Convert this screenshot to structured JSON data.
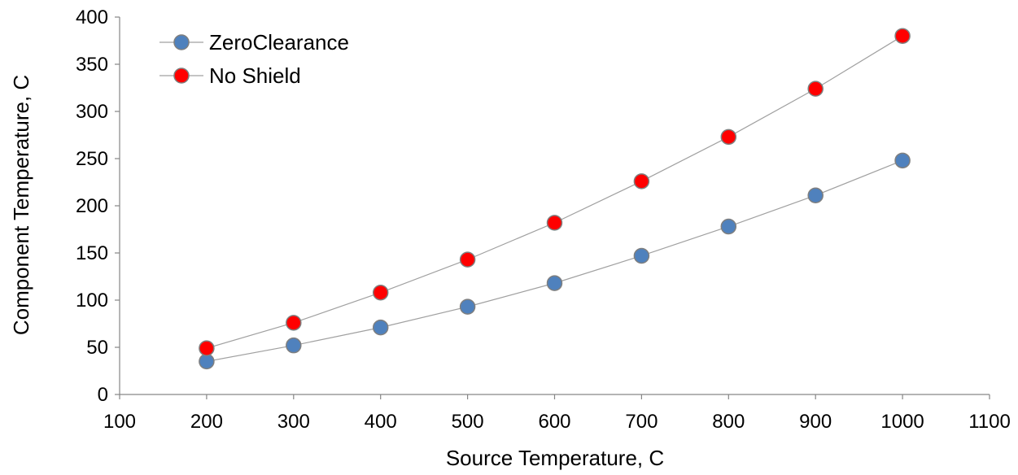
{
  "chart_data": {
    "type": "scatter",
    "title": "",
    "xlabel": "Source Temperature, C",
    "ylabel": "Component Temperature, C",
    "xlim": [
      100,
      1100
    ],
    "ylim": [
      0,
      400
    ],
    "x_ticks": [
      100,
      200,
      300,
      400,
      500,
      600,
      700,
      800,
      900,
      1000,
      1100
    ],
    "y_ticks": [
      0,
      50,
      100,
      150,
      200,
      250,
      300,
      350,
      400
    ],
    "grid": false,
    "legend_position": "top-left",
    "line_color": "#a0a0a0",
    "marker_border": "#7f7f7f",
    "series": [
      {
        "name": "ZeroClearance",
        "color": "#4f81bd",
        "x": [
          200,
          300,
          400,
          500,
          600,
          700,
          800,
          900,
          1000
        ],
        "y": [
          35,
          52,
          71,
          93,
          118,
          147,
          178,
          211,
          248
        ]
      },
      {
        "name": "No Shield",
        "color": "#ff0000",
        "x": [
          200,
          300,
          400,
          500,
          600,
          700,
          800,
          900,
          1000
        ],
        "y": [
          49,
          76,
          108,
          143,
          182,
          226,
          273,
          324,
          380
        ]
      }
    ]
  }
}
